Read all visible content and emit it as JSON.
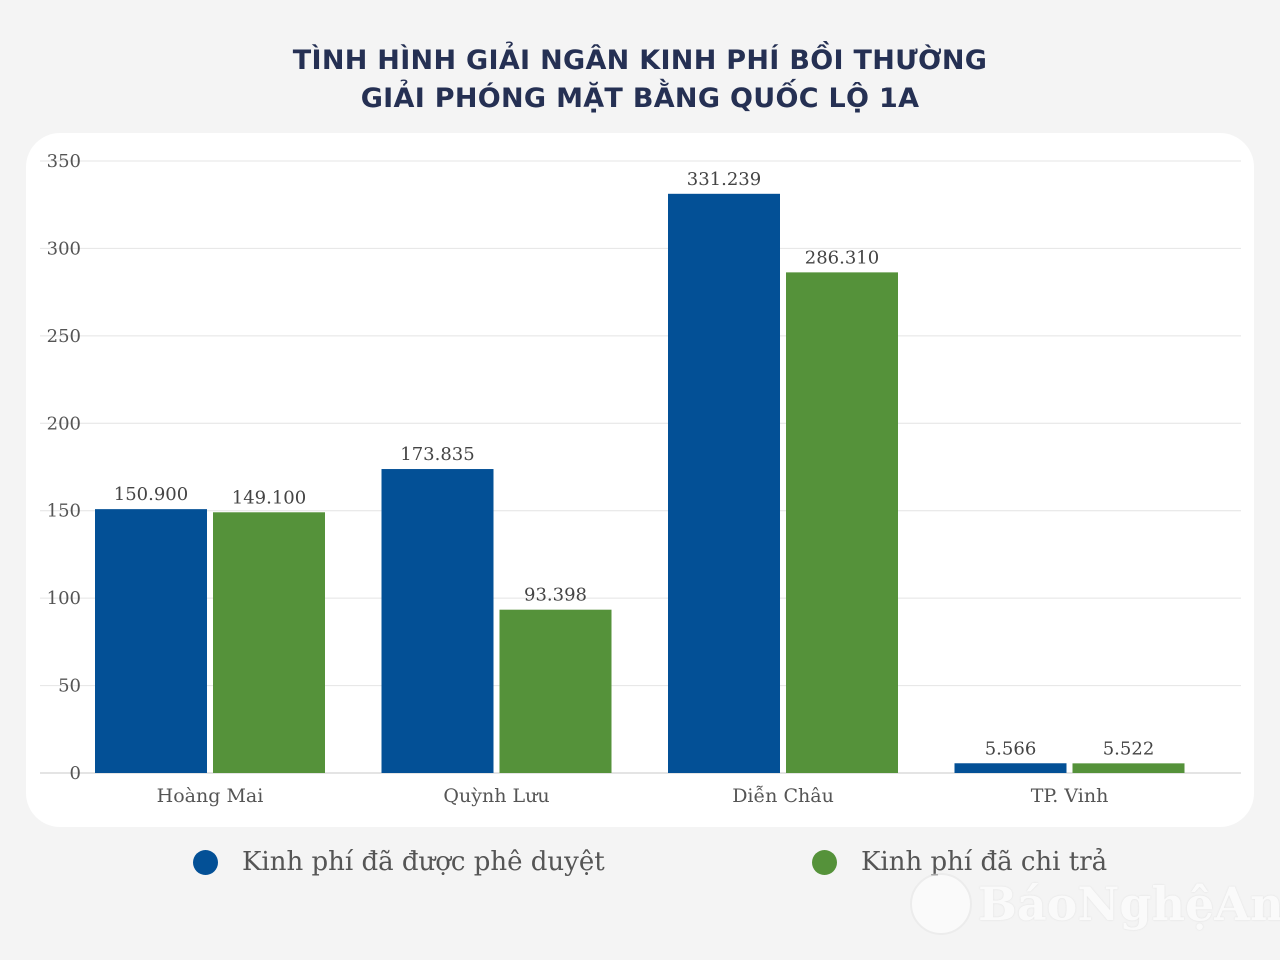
{
  "title": {
    "line1": "TÌNH HÌNH GIẢI NGÂN KINH PHÍ BỒI THƯỜNG",
    "line2": "GIẢI PHÓNG MẶT BẰNG QUỐC LỘ 1A"
  },
  "legend": {
    "approved": "Kinh phí đã được phê duyệt",
    "paid": "Kinh phí đã chi trả"
  },
  "watermark": "BáoNghệAn",
  "colors": {
    "approved": "#035096",
    "paid": "#55923a",
    "title": "#253053",
    "background": "#f4f4f4",
    "panel": "#ffffff",
    "grid": "#e4e4e4"
  },
  "chart_data": {
    "type": "bar",
    "title": "TÌNH HÌNH GIẢI NGÂN KINH PHÍ BỒI THƯỜNG GIẢI PHÓNG MẶT BẰNG QUỐC LỘ 1A",
    "categories": [
      "Hoàng Mai",
      "Quỳnh Lưu",
      "Diễn Châu",
      "TP. Vinh"
    ],
    "series": [
      {
        "name": "Kinh phí đã được phê duyệt",
        "values": [
          150.9,
          173.835,
          331.239,
          5.566
        ],
        "labels": [
          "150.900",
          "173.835",
          "331.239",
          "5.566"
        ]
      },
      {
        "name": "Kinh phí đã chi trả",
        "values": [
          149.1,
          93.398,
          286.31,
          5.522
        ],
        "labels": [
          "149.100",
          "93.398",
          "286.310",
          "5.522"
        ]
      }
    ],
    "ylim": [
      0,
      350
    ],
    "yticks": [
      0,
      50,
      100,
      150,
      200,
      250,
      300,
      350
    ],
    "xlabel": "",
    "ylabel": "",
    "grid": true,
    "legend_position": "bottom"
  }
}
